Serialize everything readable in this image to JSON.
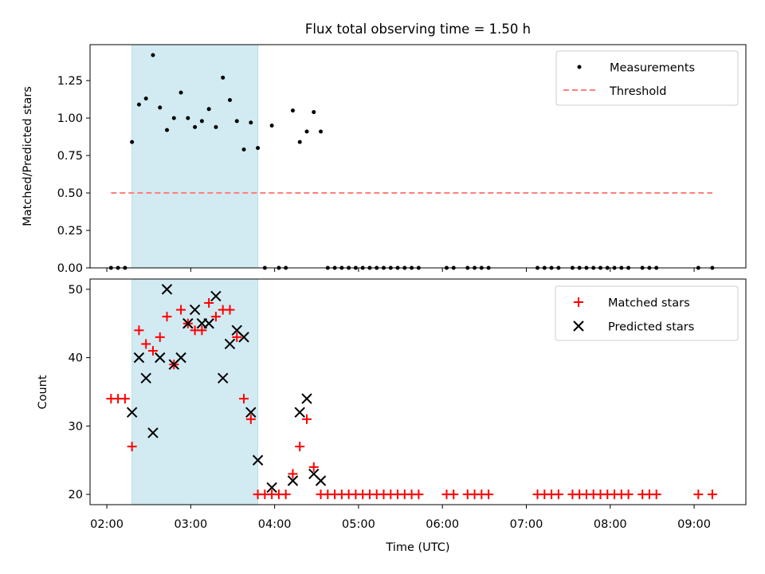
{
  "title": "Flux total observing time = 1.50 h",
  "colors": {
    "measurement": "#000000",
    "threshold": "#ff7f7f",
    "matched": "#ff0000",
    "predicted": "#000000",
    "highlight": "#add8e6"
  },
  "chart_data": [
    {
      "type": "scatter",
      "xlabel": "",
      "ylabel": "Matched/Predicted stars",
      "xlim": [
        "01:48",
        "09:37"
      ],
      "ylim": [
        0,
        1.49
      ],
      "yticks": [
        "0.00",
        "0.25",
        "0.50",
        "0.75",
        "1.00",
        "1.25"
      ],
      "highlight_span": [
        "02:18",
        "03:48"
      ],
      "legend": {
        "position": "top-right",
        "entries": [
          "Measurements",
          "Threshold"
        ]
      },
      "series": [
        {
          "name": "Measurements",
          "marker": "dot",
          "points": [
            [
              "02:03",
              0
            ],
            [
              "02:08",
              0
            ],
            [
              "02:13",
              0
            ],
            [
              "02:18",
              0.84
            ],
            [
              "02:23",
              1.09
            ],
            [
              "02:28",
              1.13
            ],
            [
              "02:33",
              1.42
            ],
            [
              "02:38",
              1.07
            ],
            [
              "02:43",
              0.92
            ],
            [
              "02:48",
              1.0
            ],
            [
              "02:53",
              1.17
            ],
            [
              "02:58",
              1.0
            ],
            [
              "03:03",
              0.94
            ],
            [
              "03:08",
              0.98
            ],
            [
              "03:13",
              1.06
            ],
            [
              "03:18",
              0.94
            ],
            [
              "03:23",
              1.27
            ],
            [
              "03:28",
              1.12
            ],
            [
              "03:33",
              0.98
            ],
            [
              "03:38",
              0.79
            ],
            [
              "03:43",
              0.97
            ],
            [
              "03:48",
              0.8
            ],
            [
              "03:53",
              0
            ],
            [
              "03:58",
              0.95
            ],
            [
              "04:03",
              0
            ],
            [
              "04:08",
              0
            ],
            [
              "04:13",
              1.05
            ],
            [
              "04:18",
              0.84
            ],
            [
              "04:23",
              0.91
            ],
            [
              "04:28",
              1.04
            ],
            [
              "04:33",
              0.91
            ],
            [
              "04:38",
              0
            ],
            [
              "04:43",
              0
            ],
            [
              "04:48",
              0
            ],
            [
              "04:53",
              0
            ],
            [
              "04:58",
              0
            ],
            [
              "05:03",
              0
            ],
            [
              "05:08",
              0
            ],
            [
              "05:13",
              0
            ],
            [
              "05:18",
              0
            ],
            [
              "05:23",
              0
            ],
            [
              "05:28",
              0
            ],
            [
              "05:33",
              0
            ],
            [
              "05:38",
              0
            ],
            [
              "05:43",
              0
            ],
            [
              "06:03",
              0
            ],
            [
              "06:08",
              0
            ],
            [
              "06:18",
              0
            ],
            [
              "06:23",
              0
            ],
            [
              "06:28",
              0
            ],
            [
              "06:33",
              0
            ],
            [
              "07:08",
              0
            ],
            [
              "07:13",
              0
            ],
            [
              "07:18",
              0
            ],
            [
              "07:23",
              0
            ],
            [
              "07:33",
              0
            ],
            [
              "07:38",
              0
            ],
            [
              "07:43",
              0
            ],
            [
              "07:48",
              0
            ],
            [
              "07:53",
              0
            ],
            [
              "07:58",
              0
            ],
            [
              "08:03",
              0
            ],
            [
              "08:08",
              0
            ],
            [
              "08:13",
              0
            ],
            [
              "08:23",
              0
            ],
            [
              "08:28",
              0
            ],
            [
              "08:33",
              0
            ],
            [
              "09:03",
              0
            ],
            [
              "09:13",
              0
            ]
          ]
        },
        {
          "name": "Threshold",
          "style": "dashed",
          "points": [
            [
              "02:03",
              0.5
            ],
            [
              "09:13",
              0.5
            ]
          ]
        }
      ]
    },
    {
      "type": "scatter",
      "xlabel": "Time (UTC)",
      "ylabel": "Count",
      "xlim": [
        "01:48",
        "09:37"
      ],
      "ylim": [
        18.5,
        51.5
      ],
      "yticks": [
        "20",
        "30",
        "40",
        "50"
      ],
      "xticks": [
        "02:00",
        "03:00",
        "04:00",
        "05:00",
        "06:00",
        "07:00",
        "08:00",
        "09:00"
      ],
      "highlight_span": [
        "02:18",
        "03:48"
      ],
      "legend": {
        "position": "top-right",
        "entries": [
          "Matched stars",
          "Predicted stars"
        ]
      },
      "series": [
        {
          "name": "Matched stars",
          "marker": "plus",
          "points": [
            [
              "02:03",
              34
            ],
            [
              "02:08",
              34
            ],
            [
              "02:13",
              34
            ],
            [
              "02:18",
              27
            ],
            [
              "02:23",
              44
            ],
            [
              "02:28",
              42
            ],
            [
              "02:33",
              41
            ],
            [
              "02:38",
              43
            ],
            [
              "02:43",
              46
            ],
            [
              "02:48",
              39
            ],
            [
              "02:53",
              47
            ],
            [
              "02:58",
              45
            ],
            [
              "03:03",
              44
            ],
            [
              "03:08",
              44
            ],
            [
              "03:13",
              48
            ],
            [
              "03:18",
              46
            ],
            [
              "03:23",
              47
            ],
            [
              "03:28",
              47
            ],
            [
              "03:33",
              43
            ],
            [
              "03:38",
              34
            ],
            [
              "03:43",
              31
            ],
            [
              "03:48",
              20
            ],
            [
              "03:53",
              20
            ],
            [
              "03:58",
              20
            ],
            [
              "04:03",
              20
            ],
            [
              "04:08",
              20
            ],
            [
              "04:13",
              23
            ],
            [
              "04:18",
              27
            ],
            [
              "04:23",
              31
            ],
            [
              "04:28",
              24
            ],
            [
              "04:33",
              20
            ],
            [
              "04:38",
              20
            ],
            [
              "04:43",
              20
            ],
            [
              "04:48",
              20
            ],
            [
              "04:53",
              20
            ],
            [
              "04:58",
              20
            ],
            [
              "05:03",
              20
            ],
            [
              "05:08",
              20
            ],
            [
              "05:13",
              20
            ],
            [
              "05:18",
              20
            ],
            [
              "05:23",
              20
            ],
            [
              "05:28",
              20
            ],
            [
              "05:33",
              20
            ],
            [
              "05:38",
              20
            ],
            [
              "05:43",
              20
            ],
            [
              "06:03",
              20
            ],
            [
              "06:08",
              20
            ],
            [
              "06:18",
              20
            ],
            [
              "06:23",
              20
            ],
            [
              "06:28",
              20
            ],
            [
              "06:33",
              20
            ],
            [
              "07:08",
              20
            ],
            [
              "07:13",
              20
            ],
            [
              "07:18",
              20
            ],
            [
              "07:23",
              20
            ],
            [
              "07:33",
              20
            ],
            [
              "07:38",
              20
            ],
            [
              "07:43",
              20
            ],
            [
              "07:48",
              20
            ],
            [
              "07:53",
              20
            ],
            [
              "07:58",
              20
            ],
            [
              "08:03",
              20
            ],
            [
              "08:08",
              20
            ],
            [
              "08:13",
              20
            ],
            [
              "08:23",
              20
            ],
            [
              "08:28",
              20
            ],
            [
              "08:33",
              20
            ],
            [
              "09:03",
              20
            ],
            [
              "09:13",
              20
            ]
          ]
        },
        {
          "name": "Predicted stars",
          "marker": "x",
          "points": [
            [
              "02:18",
              32
            ],
            [
              "02:23",
              40
            ],
            [
              "02:28",
              37
            ],
            [
              "02:33",
              29
            ],
            [
              "02:38",
              40
            ],
            [
              "02:43",
              50
            ],
            [
              "02:48",
              39
            ],
            [
              "02:53",
              40
            ],
            [
              "02:58",
              45
            ],
            [
              "03:03",
              47
            ],
            [
              "03:08",
              45
            ],
            [
              "03:13",
              45
            ],
            [
              "03:18",
              49
            ],
            [
              "03:23",
              37
            ],
            [
              "03:28",
              42
            ],
            [
              "03:33",
              44
            ],
            [
              "03:38",
              43
            ],
            [
              "03:43",
              32
            ],
            [
              "03:48",
              25
            ],
            [
              "03:58",
              21
            ],
            [
              "04:13",
              22
            ],
            [
              "04:18",
              32
            ],
            [
              "04:23",
              34
            ],
            [
              "04:28",
              23
            ],
            [
              "04:33",
              22
            ]
          ]
        }
      ]
    }
  ]
}
